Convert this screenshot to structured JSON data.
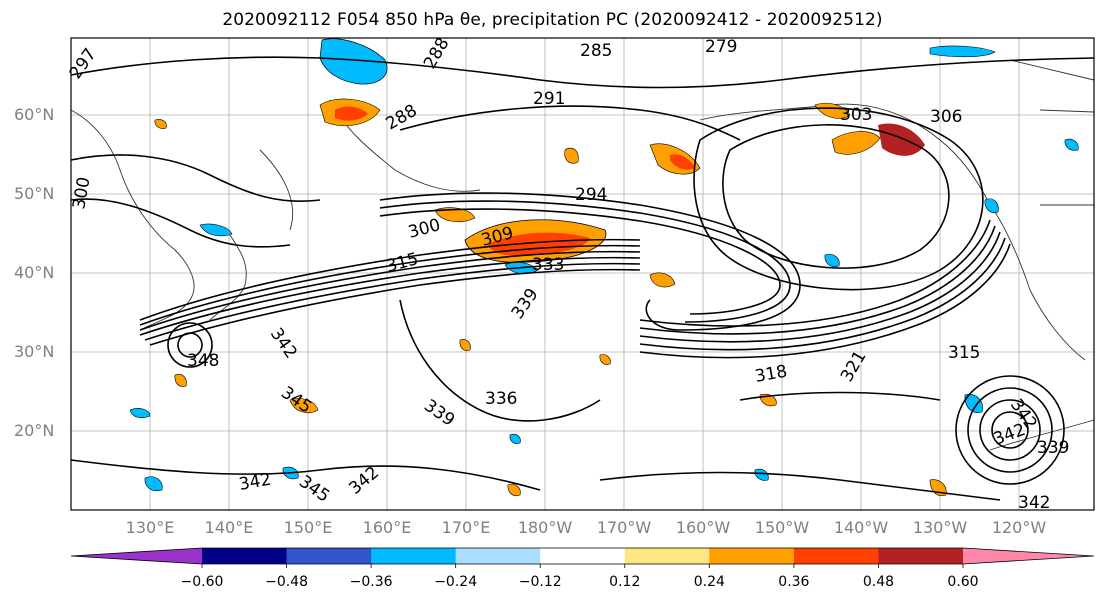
{
  "title": "2020092112 F054 850 hPa θe, precipitation PC (2020092412 - 2020092512)",
  "latitude_labels": [
    "60°N",
    "50°N",
    "40°N",
    "30°N",
    "20°N"
  ],
  "longitude_labels": [
    "130°E",
    "140°E",
    "150°E",
    "160°E",
    "170°E",
    "180°W",
    "170°W",
    "160°W",
    "150°W",
    "140°W",
    "130°W",
    "120°W"
  ],
  "contour_labels": [
    "297",
    "288",
    "285",
    "279",
    "291",
    "288",
    "303",
    "306",
    "300",
    "294",
    "300",
    "309",
    "333",
    "315",
    "348",
    "342",
    "336",
    "339",
    "339",
    "345",
    "342",
    "345",
    "342",
    "318",
    "321",
    "315",
    "342",
    "342",
    "339",
    "342"
  ],
  "colorbar": {
    "ticks": [
      "−0.60",
      "−0.48",
      "−0.36",
      "−0.24",
      "−0.12",
      "0.12",
      "0.24",
      "0.36",
      "0.48",
      "0.60"
    ],
    "colors": [
      "#9933CC",
      "#000088",
      "#3355CC",
      "#00BBFF",
      "#AADDFF",
      "#FFFFFF",
      "#FFE680",
      "#FFA000",
      "#FF4000",
      "#B22222",
      "#FF88AA"
    ]
  }
}
